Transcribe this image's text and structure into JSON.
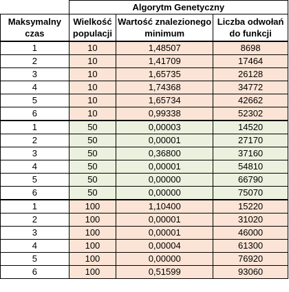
{
  "table": {
    "super_header": "Algorytm Genetyczny",
    "headers": [
      "Maksymalny czas",
      "Wielkość populacji",
      "Wartość znalezionego minimum",
      "Liczba odwołań do funkcji"
    ],
    "groups": [
      {
        "color": "#fbe4d5",
        "rows": [
          [
            "1",
            "10",
            "1,48507",
            "8698"
          ],
          [
            "2",
            "10",
            "1,41709",
            "17464"
          ],
          [
            "3",
            "10",
            "1,65735",
            "26128"
          ],
          [
            "4",
            "10",
            "1,74368",
            "34772"
          ],
          [
            "5",
            "10",
            "1,65734",
            "42662"
          ],
          [
            "6",
            "10",
            "0,99338",
            "52302"
          ]
        ]
      },
      {
        "color": "#ebf1de",
        "rows": [
          [
            "1",
            "50",
            "0,00003",
            "14520"
          ],
          [
            "2",
            "50",
            "0,00001",
            "27170"
          ],
          [
            "3",
            "50",
            "0,36800",
            "37160"
          ],
          [
            "4",
            "50",
            "0,00001",
            "54810"
          ],
          [
            "5",
            "50",
            "0,00000",
            "66790"
          ],
          [
            "6",
            "50",
            "0,00000",
            "75070"
          ]
        ]
      },
      {
        "color": "#fbe4d5",
        "rows": [
          [
            "1",
            "100",
            "1,10400",
            "15220"
          ],
          [
            "2",
            "100",
            "0,00001",
            "31020"
          ],
          [
            "3",
            "100",
            "0,00001",
            "46000"
          ],
          [
            "4",
            "100",
            "0,00004",
            "61300"
          ],
          [
            "5",
            "100",
            "0,00000",
            "76920"
          ],
          [
            "6",
            "100",
            "0,51599",
            "93060"
          ]
        ]
      }
    ]
  }
}
